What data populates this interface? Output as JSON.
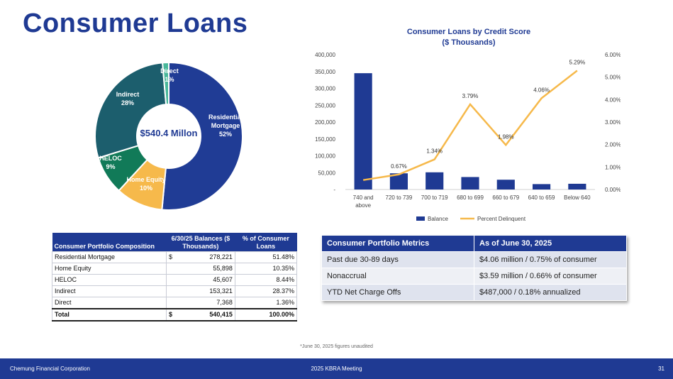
{
  "title": "Consumer Loans",
  "colors": {
    "brand_blue": "#1f3a93",
    "residential": "#203c95",
    "home_equity": "#f6b94b",
    "heloc": "#117a58",
    "indirect": "#1c5e6d",
    "direct": "#48b89a",
    "delinquent_line": "#f6b94b"
  },
  "donut": {
    "center_label": "$540.4 Millon",
    "slices": [
      {
        "name": "Residential\nMortgage",
        "pct_label": "52%",
        "value": 51.48,
        "color": "#203c95"
      },
      {
        "name": "Home Equity",
        "pct_label": "10%",
        "value": 10.35,
        "color": "#f6b94b"
      },
      {
        "name": "HELOC",
        "pct_label": "9%",
        "value": 8.44,
        "color": "#117a58"
      },
      {
        "name": "Indirect",
        "pct_label": "28%",
        "value": 28.37,
        "color": "#1c5e6d"
      },
      {
        "name": "Direct",
        "pct_label": "1%",
        "value": 1.36,
        "color": "#48b89a"
      }
    ]
  },
  "chart_data": {
    "type": "bar",
    "title": "Consumer Loans by Credit Score",
    "subtitle": "($ Thousands)",
    "categories": [
      "740 and above",
      "720 to 739",
      "700 to 719",
      "680 to 699",
      "660 to 679",
      "640 to 659",
      "Below 640"
    ],
    "series": [
      {
        "name": "Balance",
        "type": "bar",
        "axis": "left",
        "color": "#1f3a93",
        "values": [
          345000,
          48000,
          51000,
          37000,
          29000,
          16000,
          17000
        ]
      },
      {
        "name": "Percent Delinquent",
        "type": "line",
        "axis": "right",
        "color": "#f6b94b",
        "values": [
          0.0042,
          0.0067,
          0.0134,
          0.0379,
          0.0198,
          0.0406,
          0.0529
        ],
        "data_labels": [
          null,
          "0.67%",
          "1.34%",
          "3.79%",
          "1.98%",
          "4.06%",
          "5.29%"
        ]
      }
    ],
    "y_left": {
      "ylim": [
        0,
        400000
      ],
      "ticks": [
        "-",
        "50,000",
        "100,000",
        "150,000",
        "200,000",
        "250,000",
        "300,000",
        "350,000",
        "400,000"
      ]
    },
    "y_right": {
      "ylim": [
        0,
        0.06
      ],
      "ticks": [
        "0.00%",
        "1.00%",
        "2.00%",
        "3.00%",
        "4.00%",
        "5.00%",
        "6.00%"
      ]
    },
    "legend_position": "bottom",
    "grid": false
  },
  "composition_table": {
    "headers": {
      "col1": "Consumer Portfolio Composition",
      "col2": "6/30/25 Balances ($ Thousands)",
      "col3": "% of Consumer Loans"
    },
    "rows": [
      {
        "label": "Residential Mortgage",
        "currency": "$",
        "amount": "278,221",
        "pct": "51.48%"
      },
      {
        "label": "Home Equity",
        "currency": "",
        "amount": "55,898",
        "pct": "10.35%"
      },
      {
        "label": "HELOC",
        "currency": "",
        "amount": "45,607",
        "pct": "8.44%"
      },
      {
        "label": "Indirect",
        "currency": "",
        "amount": "153,321",
        "pct": "28.37%"
      },
      {
        "label": "Direct",
        "currency": "",
        "amount": "7,368",
        "pct": "1.36%"
      }
    ],
    "total": {
      "label": "Total",
      "currency": "$",
      "amount": "540,415",
      "pct": "100.00%"
    }
  },
  "metrics_table": {
    "headers": [
      "Consumer Portfolio Metrics",
      "As of June 30, 2025"
    ],
    "rows": [
      {
        "metric": "Past due 30-89 days",
        "value": "$4.06 million / 0.75% of consumer"
      },
      {
        "metric": "Nonaccrual",
        "value": "$3.59 million / 0.66% of consumer"
      },
      {
        "metric": "YTD Net Charge Offs",
        "value": "$487,000 / 0.18% annualized"
      }
    ]
  },
  "footnote": "*June 30, 2025 figures unaudited",
  "footer": {
    "left": "Chemung Financial Corporation",
    "center": "2025 KBRA Meeting",
    "right": "31"
  }
}
